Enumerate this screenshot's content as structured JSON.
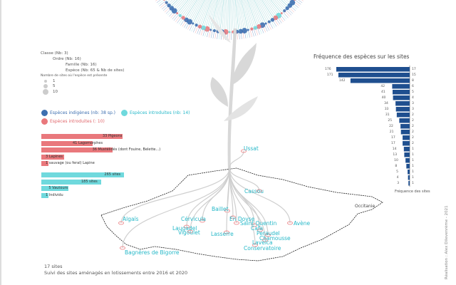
{
  "colors": {
    "native": "#3d6fb0",
    "cultivated": "#6fd9dd",
    "introduced": "#e9787c",
    "bar_native": "#1f4f8f",
    "tree": "#d8d8d8"
  },
  "legend": {
    "classe": "Classe (Nb: 3)",
    "ordre": "Ordre (Nb: 16)",
    "famille": "Famille (Nb: 16)",
    "espece": "Espèce (Nb: 65 & Nb de sites)",
    "size_title": "Nombre de sites où l'espèce est présente",
    "sizes": [
      "1",
      "5",
      "10"
    ]
  },
  "status_legend": {
    "native": "Espèces indigènes (nb: 38 sp.)",
    "cultivated": "Espèces introduites (nb: 14)",
    "introduced": "Espèces introduites (: 10)"
  },
  "red_bars": [
    {
      "value": 0.95,
      "label": "33 Pigeons"
    },
    {
      "value": 0.6,
      "label": "41 Lagomorphes"
    },
    {
      "value": 0.83,
      "label": "36 Mustélidés (dont Fouine, Belette...)"
    },
    {
      "value": 0.27,
      "label": "3 Lapines"
    },
    {
      "value": 0.08,
      "label": "1 sauvage (ou feral) Lapine"
    }
  ],
  "cyan_bars": [
    {
      "value": 0.97,
      "label": "265 sites"
    },
    {
      "value": 0.7,
      "label": "185 sites"
    },
    {
      "value": 0.32,
      "label": "5 Vautours"
    },
    {
      "value": 0.08,
      "label": "1 Individu"
    }
  ],
  "chart_data": {
    "type": "bar",
    "title": "Fréquence des espèces sur les sites",
    "xlabel": "Fréquence des sites",
    "categories": [
      "176",
      "171",
      "142",
      "42",
      "41",
      "40",
      "34",
      "33",
      "31",
      "25",
      "22",
      "21",
      "17",
      "17",
      "14",
      "13",
      "10",
      "8",
      "5",
      "4",
      "3"
    ],
    "values": [
      176,
      171,
      142,
      42,
      41,
      40,
      34,
      33,
      31,
      25,
      22,
      21,
      17,
      17,
      14,
      13,
      10,
      8,
      5,
      4,
      3
    ],
    "value_labels": [
      "17",
      "15",
      "8",
      "6",
      "5",
      "4",
      "3",
      "3",
      "2",
      "2",
      "2",
      "2",
      "2",
      "2",
      "1",
      "1",
      "1",
      "1",
      "1",
      "1",
      "1"
    ],
    "xlim": [
      0,
      176
    ]
  },
  "map": {
    "sites": [
      {
        "name": "Ussat"
      },
      {
        "name": "Cassou"
      },
      {
        "name": "Baillet"
      },
      {
        "name": "Cérvicula"
      },
      {
        "name": "En Doyse"
      },
      {
        "name": "Saint Quentin"
      },
      {
        "name": "Cafa"
      },
      {
        "name": "Peraudel"
      },
      {
        "name": "Lasserre"
      },
      {
        "name": "Laugadel"
      },
      {
        "name": "Vigoulet"
      },
      {
        "name": "Chamousse"
      },
      {
        "name": "Lavelca"
      },
      {
        "name": "Conservatoire"
      },
      {
        "name": "Algaïs"
      },
      {
        "name": "Avène"
      },
      {
        "name": "Bagnères de Bigorre"
      }
    ],
    "region_label": "Occitanie"
  },
  "footer": {
    "count": "17 sites",
    "note": "Suivi des sites aménagés en lotissements entre 2016 et 2020"
  },
  "side_credit": "Réalisation : Alex Dilevenrème - 2021"
}
